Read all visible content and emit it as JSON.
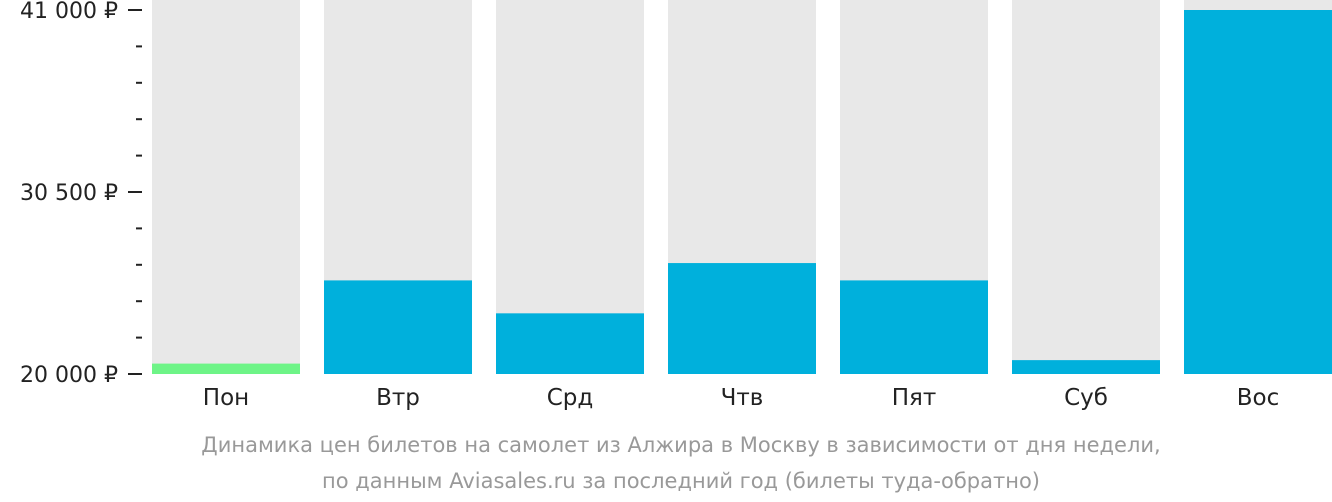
{
  "chart_data": {
    "type": "bar",
    "categories": [
      "Пон",
      "Втр",
      "Срд",
      "Чтв",
      "Пят",
      "Суб",
      "Вос"
    ],
    "values": [
      20600,
      25400,
      23500,
      26400,
      25400,
      20800,
      41000
    ],
    "y_ticks": [
      {
        "value": 41000,
        "label": "41 000 ₽"
      },
      {
        "value": 30500,
        "label": "30 500 ₽"
      },
      {
        "value": 20000,
        "label": "20 000 ₽"
      }
    ],
    "ylim": [
      20000,
      41000
    ],
    "minor_ticks_between": 4,
    "colors": {
      "background_bar": "#e8e8e8",
      "bar": "#00b0dc",
      "lowest_bar": "#6ef487",
      "axis": "#222222"
    },
    "highlight_index": 0
  },
  "caption": {
    "line1": "Динамика цен билетов на самолет из Алжира в Москву в зависимости от дня недели,",
    "line2": "по данным Aviasales.ru за последний год (билеты туда-обратно)"
  }
}
